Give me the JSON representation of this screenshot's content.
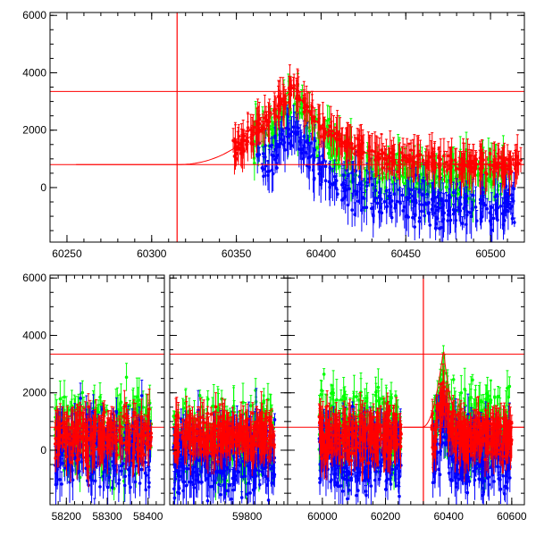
{
  "colors": {
    "red": "#ff0000",
    "green": "#00ff00",
    "blue": "#0000ff",
    "axis": "#000000"
  },
  "chart_data": [
    {
      "type": "scatter",
      "panel": "top",
      "xlim": [
        60240,
        60520
      ],
      "ylim": [
        -1900,
        6100
      ],
      "x_ticks": [
        60250,
        60300,
        60350,
        60400,
        60450,
        60500
      ],
      "y_ticks": [
        0,
        2000,
        4000,
        6000
      ],
      "hlines": [
        800,
        3350
      ],
      "vlines": [
        60315
      ],
      "model_curve": {
        "t0": 60315,
        "baseline": 800,
        "peak_x": 60384,
        "peak_y": 3550
      },
      "series": [
        {
          "color": "red",
          "segments": [
            [
              60348,
              60518
            ]
          ],
          "shape": "peak",
          "offset": 0,
          "spread": 600
        },
        {
          "color": "green",
          "segments": [
            [
              60360,
              60512
            ]
          ],
          "shape": "peak",
          "offset": -500,
          "spread": 1400
        },
        {
          "color": "blue",
          "segments": [
            [
              60362,
              60516
            ]
          ],
          "shape": "peak",
          "offset": -1500,
          "spread": 1200
        }
      ]
    },
    {
      "type": "scatter",
      "panel": "bottom-1",
      "xlim": [
        58160,
        58440
      ],
      "ylim": [
        -1900,
        6100
      ],
      "x_ticks": [
        58200,
        58300,
        58400
      ],
      "y_ticks": [
        0,
        2000,
        4000,
        6000
      ],
      "hlines": [
        800,
        3350
      ],
      "vlines": [],
      "series": [
        {
          "color": "red",
          "segments": [
            [
              58172,
              58408
            ]
          ],
          "shape": "flat",
          "offset": 500,
          "spread": 1400
        },
        {
          "color": "green",
          "segments": [
            [
              58172,
              58408
            ]
          ],
          "shape": "flat",
          "offset": 600,
          "spread": 2200
        },
        {
          "color": "blue",
          "segments": [
            [
              58172,
              58408
            ]
          ],
          "shape": "flat",
          "offset": 0,
          "spread": 2200
        }
      ]
    },
    {
      "type": "scatter",
      "panel": "bottom-2",
      "xlim": [
        59590,
        59910
      ],
      "ylim": [
        -1900,
        6100
      ],
      "x_ticks": [
        59800
      ],
      "y_ticks": [
        0,
        2000,
        4000,
        6000
      ],
      "hlines": [
        800,
        3350
      ],
      "vlines": [],
      "series": [
        {
          "color": "red",
          "segments": [
            [
              59600,
              59875
            ]
          ],
          "shape": "flat",
          "offset": 500,
          "spread": 1300
        },
        {
          "color": "green",
          "segments": [
            [
              59600,
              59875
            ]
          ],
          "shape": "flat",
          "offset": 400,
          "spread": 2200
        },
        {
          "color": "blue",
          "segments": [
            [
              59600,
              59875
            ]
          ],
          "shape": "flat",
          "offset": -300,
          "spread": 2200
        }
      ]
    },
    {
      "type": "scatter",
      "panel": "bottom-3",
      "xlim": [
        59890,
        60640
      ],
      "ylim": [
        -1900,
        6100
      ],
      "x_ticks": [
        60000,
        60200,
        60400,
        60600
      ],
      "y_ticks": [
        0,
        2000,
        4000,
        6000
      ],
      "hlines": [
        800,
        3350
      ],
      "vlines": [
        60320
      ],
      "model_curve": {
        "t0": 60315,
        "baseline": 800,
        "peak_x": 60384,
        "peak_y": 3550
      },
      "series": [
        {
          "color": "red",
          "segments": [
            [
              59990,
              60250
            ],
            [
              60345,
              60600
            ]
          ],
          "shape": "flat",
          "offset": 500,
          "spread": 1300
        },
        {
          "color": "green",
          "segments": [
            [
              59990,
              60250
            ],
            [
              60350,
              60595
            ]
          ],
          "shape": "flat",
          "offset": 700,
          "spread": 2300
        },
        {
          "color": "blue",
          "segments": [
            [
              59990,
              60250
            ],
            [
              60350,
              60595
            ]
          ],
          "shape": "flat",
          "offset": -200,
          "spread": 2100
        }
      ]
    }
  ]
}
